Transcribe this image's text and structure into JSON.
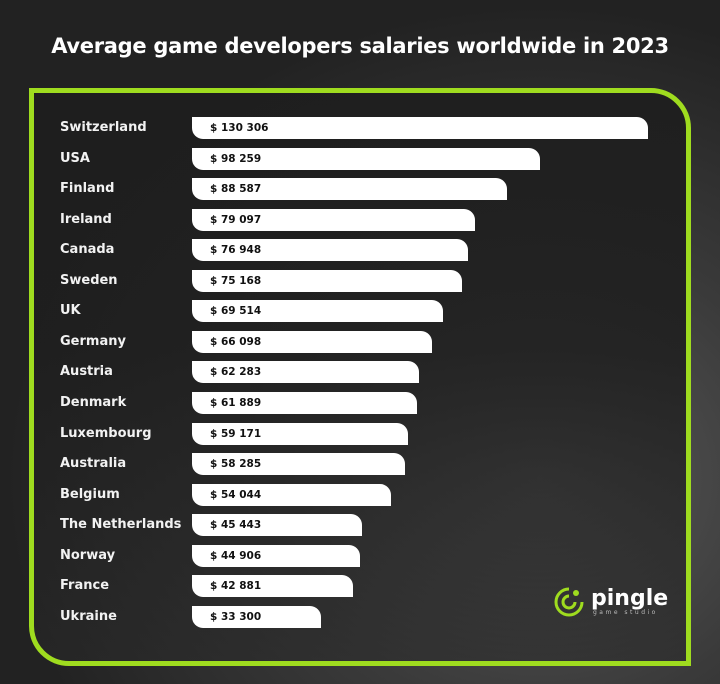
{
  "chart_data": {
    "type": "bar",
    "orientation": "horizontal",
    "title": "Average game developers salaries worldwide in 2023",
    "categories": [
      "Switzerland",
      "USA",
      "Finland",
      "Ireland",
      "Canada",
      "Sweden",
      "UK",
      "Germany",
      "Austria",
      "Denmark",
      "Luxembourg",
      "Australia",
      "Belgium",
      "The Netherlands",
      "Norway",
      "France",
      "Ukraine"
    ],
    "values": [
      130306,
      98259,
      88587,
      79097,
      76948,
      75168,
      69514,
      66098,
      62283,
      61889,
      59171,
      58285,
      54044,
      45443,
      44906,
      42881,
      33300
    ],
    "labels": [
      "$ 130 306",
      "$ 98 259",
      "$ 88 587",
      "$ 79 097",
      "$ 76 948",
      "$ 75 168",
      "$ 69 514",
      "$ 66 098",
      "$ 62 283",
      "$ 61 889",
      "$ 59 171",
      "$ 58 285",
      "$ 54 044",
      "$ 45 443",
      "$ 44 906",
      "$ 42 881",
      "$ 33 300"
    ],
    "bar_color": "#ffffff",
    "frame_color": "#9fdc1f",
    "grid": false
  },
  "logo": {
    "name": "pingle",
    "tagline": "game studio",
    "icon": "chameleon-icon"
  }
}
